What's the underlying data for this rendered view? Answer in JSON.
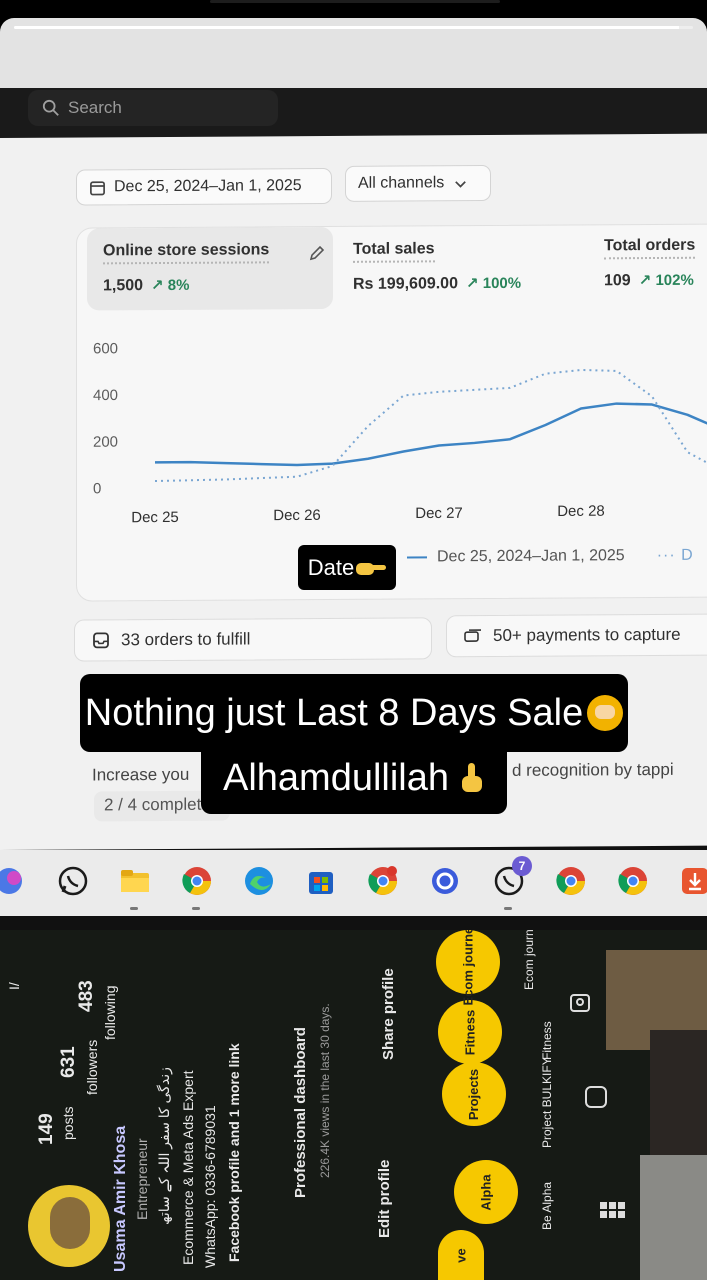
{
  "story": {
    "progress_fraction": 0.98
  },
  "search": {
    "placeholder": "Search"
  },
  "filters": {
    "date_range": "Dec 25, 2024–Jan 1, 2025",
    "channel": "All channels"
  },
  "metrics": [
    {
      "label": "Online store sessions",
      "value": "1,500",
      "delta": "8%"
    },
    {
      "label": "Total sales",
      "value": "Rs 199,609.00",
      "delta": "100%"
    },
    {
      "label": "Total orders",
      "value": "109",
      "delta": "102%"
    }
  ],
  "chart_data": {
    "type": "line",
    "title": "",
    "xlabel": "",
    "ylabel": "",
    "ylim": [
      0,
      600
    ],
    "yticks": [
      "600",
      "400",
      "200",
      "0"
    ],
    "categories": [
      "Dec 25",
      "Dec 26",
      "Dec 27",
      "Dec 28",
      "D"
    ],
    "series": [
      {
        "name": "Dec 25, 2024–Jan 1, 2025",
        "style": "solid",
        "color": "#3d84c4",
        "x": [
          0,
          0.25,
          0.5,
          0.75,
          1.0,
          1.25,
          1.5,
          1.75,
          2.0,
          2.25,
          2.5,
          2.75,
          3.0,
          3.25,
          3.5,
          3.75,
          3.9
        ],
        "values": [
          110,
          110,
          105,
          100,
          95,
          100,
          120,
          150,
          175,
          185,
          200,
          260,
          330,
          350,
          345,
          300,
          260
        ]
      },
      {
        "name": "D",
        "style": "dotted",
        "color": "#7aa6d2",
        "x": [
          0,
          0.5,
          1.0,
          1.25,
          1.5,
          1.75,
          2.0,
          2.5,
          2.75,
          3.0,
          3.25,
          3.5,
          3.75,
          3.9
        ],
        "values": [
          30,
          35,
          45,
          90,
          260,
          390,
          405,
          420,
          480,
          495,
          490,
          380,
          140,
          90
        ]
      }
    ],
    "legend": "bottom",
    "grid": false
  },
  "legend": {
    "current": "Dec 25, 2024–Jan 1, 2025",
    "previous": "D"
  },
  "tasks": {
    "fulfill": "33 orders to fulfill",
    "payments": "50+ payments to capture"
  },
  "setup": {
    "text_left": "Increase you",
    "text_right": "d recognition by tappi",
    "progress": "2 / 4 completed"
  },
  "taskbar": {
    "whatsapp_badge": "7"
  },
  "overlays": {
    "date_caption": "Date",
    "main_line1": "Nothing just Last 8 Days Sale",
    "main_line2": "Alhamdullilah"
  },
  "instagram": {
    "posts_count": "149",
    "posts_label": "posts",
    "followers_count": "631",
    "followers_label": "followers",
    "following_count": "483",
    "following_label": "following",
    "name": "Usama Amir Khosa",
    "category": "Entrepreneur",
    "bio_urdu": "زندگی کا سفر اللہ کے ساتھ",
    "bio_line1": "Ecommerce & Meta Ads Expert",
    "bio_line2": "WhatsApp: 0336-6789031",
    "link": "Facebook profile and 1 more link",
    "dashboard_title": "Professional dashboard",
    "dashboard_sub": "226.4K views in the last 30 days.",
    "edit_profile": "Edit profile",
    "share_profile": "Share profile",
    "highlights": [
      "Alpha",
      "Projects",
      "Fitness",
      "Ecom journey"
    ],
    "highlight_captions": [
      "Be Alpha",
      "Project BULKIFY",
      "Fitness",
      "Ecom journe"
    ],
    "top_left": "I/"
  }
}
